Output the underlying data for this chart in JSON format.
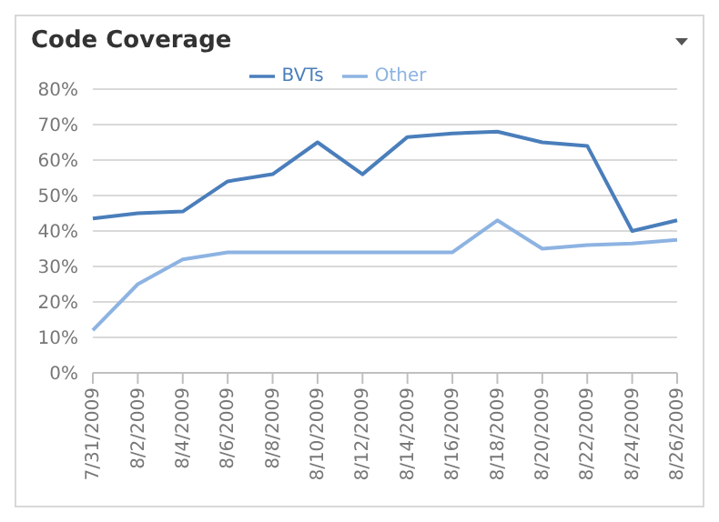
{
  "chart_data": {
    "type": "line",
    "title": "Code Coverage",
    "categories": [
      "7/31/2009",
      "8/2/2009",
      "8/4/2009",
      "8/6/2009",
      "8/8/2009",
      "8/10/2009",
      "8/12/2009",
      "8/14/2009",
      "8/16/2009",
      "8/18/2009",
      "8/20/2009",
      "8/22/2009",
      "8/24/2009",
      "8/26/2009"
    ],
    "series": [
      {
        "name": "BVTs",
        "color": "#4a7ebb",
        "values": [
          43.5,
          45,
          45.5,
          54,
          56,
          65,
          56,
          66.5,
          67.5,
          68,
          65,
          64,
          40,
          43
        ]
      },
      {
        "name": "Other",
        "color": "#8db3e2",
        "values": [
          12,
          25,
          32,
          34,
          34,
          34,
          34,
          34,
          34,
          43,
          35,
          36,
          36.5,
          37.5
        ]
      }
    ],
    "ylim": [
      0,
      80
    ],
    "yticks": [
      {
        "value": 0,
        "label": "0%"
      },
      {
        "value": 10,
        "label": "10%"
      },
      {
        "value": 20,
        "label": "20%"
      },
      {
        "value": 30,
        "label": "30%"
      },
      {
        "value": 40,
        "label": "40%"
      },
      {
        "value": 50,
        "label": "50%"
      },
      {
        "value": 60,
        "label": "60%"
      },
      {
        "value": 70,
        "label": "70%"
      },
      {
        "value": 80,
        "label": "80%"
      }
    ],
    "grid": "y",
    "legend": "top",
    "marker": "none",
    "line_style": "solid"
  }
}
